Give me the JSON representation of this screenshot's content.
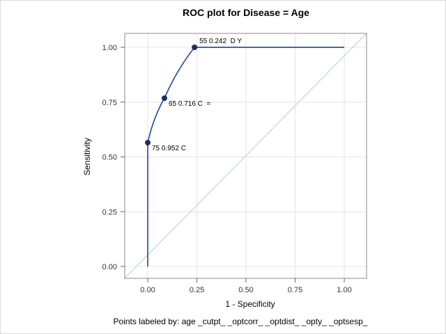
{
  "title": "ROC plot for Disease = Age",
  "footnote": "Points labeled by: age _cutpt_ _optcorr_ _optdist_ _opty_ _optsesp_",
  "chart_data": {
    "type": "line",
    "title": "ROC plot for Disease = Age",
    "xlabel": "1 - Specificity",
    "ylabel": "Sensitivity",
    "xlim": [
      0,
      1
    ],
    "ylim": [
      0,
      1
    ],
    "grid": true,
    "xticks": [
      "0.00",
      "0.25",
      "0.50",
      "0.75",
      "1.00"
    ],
    "yticks": [
      "0.00",
      "0.25",
      "0.50",
      "0.75",
      "1.00"
    ],
    "reference_line": {
      "type": "diagonal",
      "from": [
        0,
        0
      ],
      "to": [
        1,
        1
      ]
    },
    "roc_curve": {
      "points": [
        [
          0,
          0
        ],
        [
          0,
          0.565
        ],
        [
          0.085,
          0.768
        ],
        [
          0.238,
          1.0
        ],
        [
          1.0,
          1.0
        ]
      ]
    },
    "labeled_points": [
      {
        "x": 0.0,
        "y": 0.565,
        "label": "75 0.952 C",
        "placement": "below-right"
      },
      {
        "x": 0.085,
        "y": 0.768,
        "label": "65 0.716 C  =",
        "placement": "below-right"
      },
      {
        "x": 0.238,
        "y": 1.0,
        "label": "55 0.242  D Y",
        "placement": "above-right"
      }
    ],
    "colors": {
      "roc_line": "#2f4f9b",
      "marker": "#1b2d64",
      "diagonal": "#c7cfdf",
      "grid": "#e4e4e4",
      "wall_border": "#8a8a8a",
      "tick": "#666666",
      "tick_text": "#333333",
      "text": "#000000"
    }
  }
}
